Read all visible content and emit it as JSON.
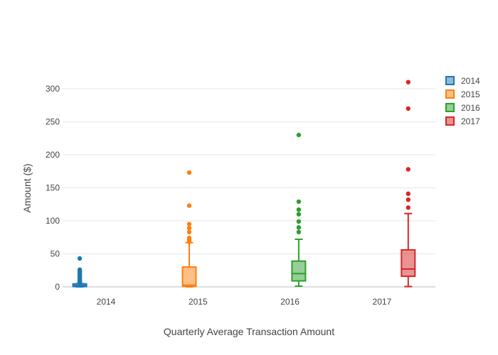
{
  "chart_data": {
    "type": "box",
    "title": "",
    "xlabel": "Quarterly Average Transaction Amount",
    "ylabel": "Amount ($)",
    "categories": [
      "2014",
      "2015",
      "2016",
      "2017"
    ],
    "yticks": [
      0,
      50,
      100,
      150,
      200,
      250,
      300
    ],
    "ylim": [
      -8,
      327
    ],
    "grid": true,
    "legend_position": "top-right",
    "series": [
      {
        "name": "2014",
        "color": "#1f77b4",
        "fill": "rgba(31,119,180,0.5)",
        "q1": 0.5,
        "median": 2,
        "q3": 4.5,
        "whisker_low": 0,
        "whisker_high": 5,
        "outliers": [
          43,
          26,
          24,
          22,
          21,
          19,
          18,
          16,
          15,
          13,
          12,
          10,
          9,
          8,
          7,
          6
        ]
      },
      {
        "name": "2015",
        "color": "#ff7f0e",
        "fill": "rgba(255,127,14,0.5)",
        "q1": 1,
        "median": 2.5,
        "q3": 30,
        "whisker_low": 0,
        "whisker_high": 67,
        "outliers": [
          173,
          123,
          95,
          89,
          83,
          74,
          71,
          68
        ]
      },
      {
        "name": "2016",
        "color": "#2ca02c",
        "fill": "rgba(44,160,44,0.5)",
        "q1": 9,
        "median": 20,
        "q3": 39,
        "whisker_low": 1,
        "whisker_high": 72,
        "outliers": [
          230,
          129,
          117,
          110,
          99,
          90,
          83
        ]
      },
      {
        "name": "2017",
        "color": "#d62728",
        "fill": "rgba(214,39,40,0.5)",
        "q1": 16,
        "median": 27,
        "q3": 56,
        "whisker_low": 0.5,
        "whisker_high": 111,
        "outliers": [
          310,
          270,
          178,
          141,
          132,
          120
        ]
      }
    ]
  }
}
